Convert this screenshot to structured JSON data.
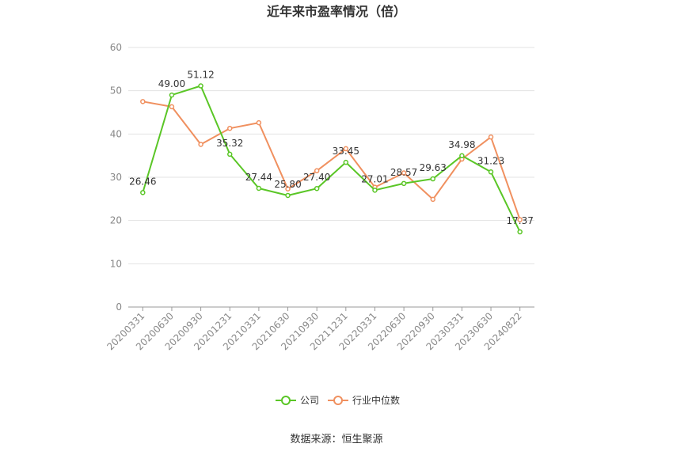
{
  "chart_data": {
    "type": "line",
    "title": "近年来市盈率情况（倍）",
    "categories": [
      "20200331",
      "20200630",
      "20200930",
      "20201231",
      "20210331",
      "20210630",
      "20210930",
      "20211231",
      "20220331",
      "20220630",
      "20220930",
      "20230331",
      "20230630",
      "20240822"
    ],
    "series": [
      {
        "name": "公司",
        "color": "#5ac626",
        "values": [
          26.46,
          49.0,
          51.12,
          35.32,
          27.44,
          25.8,
          27.4,
          33.45,
          27.01,
          28.57,
          29.63,
          34.98,
          31.23,
          17.37
        ],
        "labels": [
          "26.46",
          "49.00",
          "51.12",
          "35.32",
          "27.44",
          "25.80",
          "27.40",
          "33.45",
          "27.01",
          "28.57",
          "29.63",
          "34.98",
          "31.23",
          "17.37"
        ]
      },
      {
        "name": "行业中位数",
        "color": "#f0905f",
        "values": [
          47.5,
          46.3,
          37.6,
          41.3,
          42.6,
          27.3,
          31.5,
          36.6,
          27.7,
          31.0,
          24.9,
          34.2,
          39.3,
          20.2
        ]
      }
    ],
    "ylim": [
      0,
      60
    ],
    "yticks": [
      0,
      10,
      20,
      30,
      40,
      50,
      60
    ],
    "grid": true,
    "legend_position": "bottom-center"
  },
  "source": "数据来源：恒生聚源"
}
